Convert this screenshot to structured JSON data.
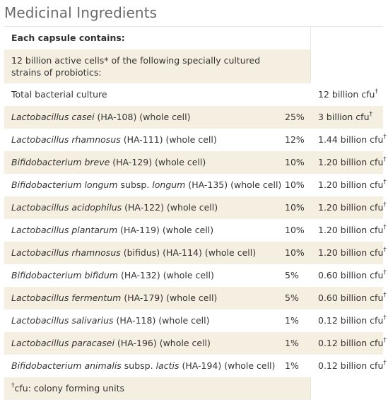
{
  "title": "Medicinal Ingredients",
  "header": "Each capsule contains:",
  "intro": "12 billion active cells* of the following specially cultured strains of probiotics:",
  "total": {
    "label": "Total bacterial culture",
    "amount": "12 billion cfu",
    "mark": "†"
  },
  "strains": [
    {
      "species": "Lactobacillus casei",
      "suffix": " (HA-108) (whole cell)",
      "pct": "25%",
      "amount": "3 billion cfu",
      "mark": "†"
    },
    {
      "species": "Lactobacillus rhamnosus",
      "suffix": " (HA-111) (whole cell)",
      "pct": "12%",
      "amount": "1.44 billion cfu",
      "mark": "†"
    },
    {
      "species": "Bifidobacterium breve",
      "suffix": " (HA-129) (whole cell)",
      "pct": "10%",
      "amount": "1.20 billion cfu",
      "mark": "†"
    },
    {
      "species": "Bifidobacterium longum",
      "mid": " subsp. ",
      "species2": "longum",
      "suffix": " (HA-135) (whole cell)",
      "pct": "10%",
      "amount": "1.20 billion cfu",
      "mark": "†"
    },
    {
      "species": "Lactobacillus acidophilus",
      "suffix": " (HA-122) (whole cell)",
      "pct": "10%",
      "amount": "1.20 billion cfu",
      "mark": "†"
    },
    {
      "species": "Lactobacillus plantarum",
      "suffix": " (HA-119) (whole cell)",
      "pct": "10%",
      "amount": "1.20 billion cfu",
      "mark": "†"
    },
    {
      "species": "Lactobacillus rhamnosus",
      "suffix": " (bifidus) (HA-114) (whole cell)",
      "pct": "10%",
      "amount": "1.20 billion cfu",
      "mark": "†"
    },
    {
      "species": "Bifidobacterium bifidum",
      "suffix": " (HA-132) (whole cell)",
      "pct": "5%",
      "amount": "0.60 billion cfu",
      "mark": "†"
    },
    {
      "species": "Lactobacillus fermentum",
      "suffix": " (HA-179) (whole cell)",
      "pct": "5%",
      "amount": "0.60 billion cfu",
      "mark": "†"
    },
    {
      "species": "Lactobacillus salivarius",
      "suffix": " (HA-118) (whole cell)",
      "pct": "1%",
      "amount": "0.12 billion cfu",
      "mark": "†"
    },
    {
      "species": "Lactobacillus paracasei",
      "suffix": " (HA-196) (whole cell)",
      "pct": "1%",
      "amount": "0.12 billion cfu",
      "mark": "†"
    },
    {
      "species": "Bifidobacterium animalis",
      "mid": " subsp. ",
      "species2": "lactis",
      "suffix": " (HA-194) (whole cell)",
      "pct": "1%",
      "amount": "0.12 billion cfu",
      "mark": "†"
    }
  ],
  "footnote": {
    "mark": "†",
    "text": "cfu: colony forming units"
  },
  "colors": {
    "band": "#f5efe1",
    "title": "#6a6a6a",
    "text": "#333333"
  }
}
